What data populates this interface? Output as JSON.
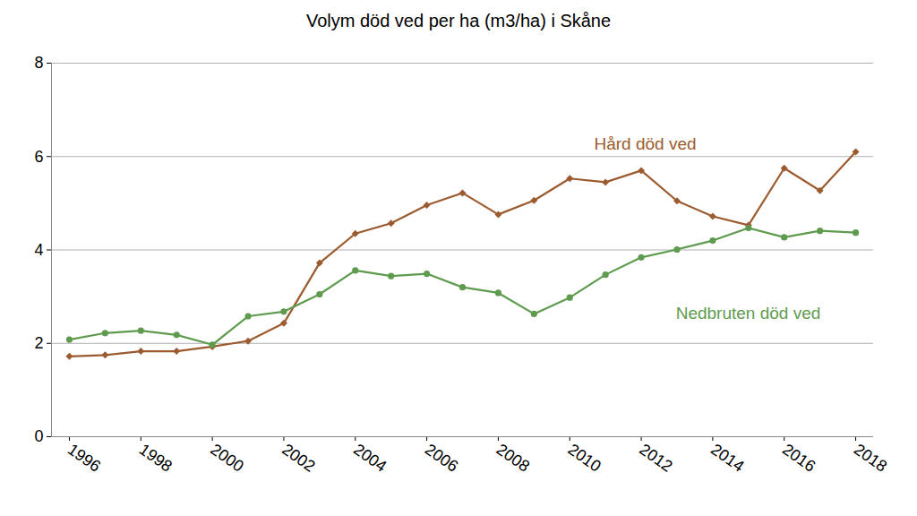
{
  "chart_data": {
    "type": "line",
    "title": "Volym död ved per ha (m3/ha) i Skåne",
    "x": [
      1996,
      1997,
      1998,
      1999,
      2000,
      2001,
      2002,
      2003,
      2004,
      2005,
      2006,
      2007,
      2008,
      2009,
      2010,
      2011,
      2012,
      2013,
      2014,
      2015,
      2016,
      2017,
      2018
    ],
    "xlim": [
      1995.5,
      2018.5
    ],
    "xticks": [
      1996,
      1998,
      2000,
      2002,
      2004,
      2006,
      2008,
      2010,
      2012,
      2014,
      2016,
      2018
    ],
    "ylim": [
      0,
      8
    ],
    "yticks": [
      0,
      2,
      4,
      6,
      8
    ],
    "grid": true,
    "series": [
      {
        "name": "Hård död ved",
        "color": "#9c5b2e",
        "marker": "diamond",
        "values": [
          1.72,
          1.75,
          1.83,
          1.83,
          1.93,
          2.05,
          2.43,
          3.72,
          4.35,
          4.57,
          4.96,
          5.22,
          4.76,
          5.06,
          5.53,
          5.45,
          5.7,
          5.05,
          4.72,
          4.53,
          5.75,
          5.27,
          6.1
        ]
      },
      {
        "name": "Nedbruten död ved",
        "color": "#5e9b4f",
        "marker": "circle",
        "values": [
          2.08,
          2.22,
          2.27,
          2.18,
          1.97,
          2.58,
          2.68,
          3.05,
          3.56,
          3.44,
          3.49,
          3.2,
          3.08,
          2.63,
          2.98,
          3.47,
          3.84,
          4.01,
          4.2,
          4.47,
          4.27,
          4.41,
          4.37
        ]
      }
    ]
  }
}
